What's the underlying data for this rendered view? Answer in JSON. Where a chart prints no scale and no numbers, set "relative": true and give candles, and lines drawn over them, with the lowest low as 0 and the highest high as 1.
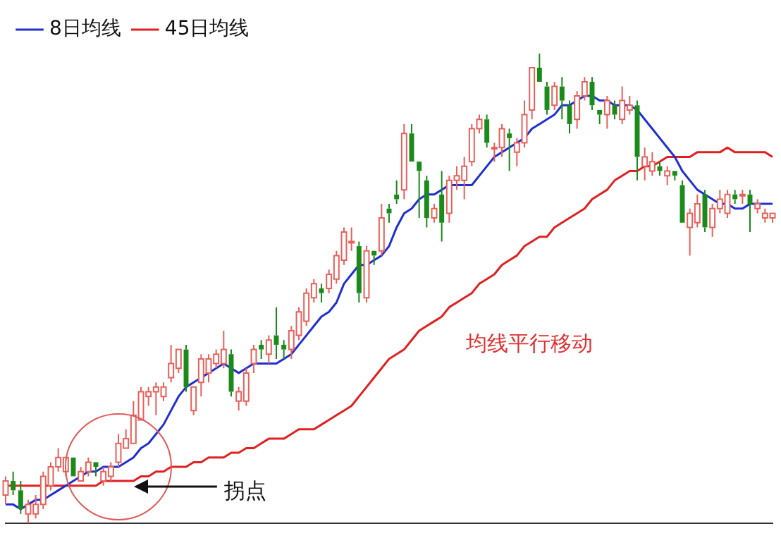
{
  "chart_data": {
    "type": "candlestick",
    "relative": true,
    "legend": "top left",
    "categories": [
      null,
      null,
      null,
      null,
      null,
      null,
      null,
      null,
      null,
      null,
      null,
      null,
      null,
      null,
      null,
      null,
      null,
      null,
      null,
      null,
      null,
      null,
      null,
      null,
      null,
      null,
      null,
      null,
      null,
      null,
      null,
      null,
      null,
      null,
      null,
      null,
      null,
      null,
      null,
      null,
      null,
      null,
      null,
      null,
      null,
      null,
      null,
      null,
      null,
      null,
      null,
      null,
      null,
      null,
      null,
      null,
      null,
      null,
      null,
      null,
      null,
      null,
      null,
      null,
      null,
      null,
      null,
      null,
      null,
      null,
      null,
      null,
      null,
      null,
      null,
      null,
      null,
      null,
      null,
      null,
      null,
      null,
      null,
      null,
      null,
      null,
      null,
      null,
      null,
      null,
      null,
      null,
      null,
      null,
      null,
      null,
      null,
      null,
      null,
      null,
      null,
      null,
      null
    ],
    "ohlc": [
      [
        0.06,
        0.1,
        0.04,
        0.09
      ],
      [
        0.09,
        0.11,
        0.06,
        0.07
      ],
      [
        0.07,
        0.09,
        0.02,
        0.03
      ],
      [
        0.02,
        0.05,
        0,
        0.04
      ],
      [
        0.02,
        0.06,
        0.01,
        0.04
      ],
      [
        0.04,
        0.11,
        0.03,
        0.1
      ],
      [
        0.08,
        0.13,
        0.07,
        0.12
      ],
      [
        0.12,
        0.16,
        0.11,
        0.14
      ],
      [
        0.11,
        0.14,
        0.1,
        0.14
      ],
      [
        0.14,
        0.14,
        0.1,
        0.1
      ],
      [
        0.09,
        0.12,
        0.09,
        0.11
      ],
      [
        0.11,
        0.14,
        0.1,
        0.13
      ],
      [
        0.13,
        0.13,
        0.1,
        0.12
      ],
      [
        0.09,
        0.12,
        0.08,
        0.11
      ],
      [
        0.1,
        0.13,
        0.09,
        0.12
      ],
      [
        0.13,
        0.19,
        0.12,
        0.17
      ],
      [
        0.16,
        0.2,
        0.16,
        0.18
      ],
      [
        0.17,
        0.26,
        0.17,
        0.23
      ],
      [
        0.22,
        0.29,
        0.22,
        0.28
      ],
      [
        0.27,
        0.29,
        0.25,
        0.28
      ],
      [
        0.28,
        0.3,
        0.23,
        0.29
      ],
      [
        0.27,
        0.3,
        0.26,
        0.29
      ],
      [
        0.31,
        0.38,
        0.3,
        0.34
      ],
      [
        0.33,
        0.37,
        0.32,
        0.37
      ],
      [
        0.37,
        0.38,
        0.28,
        0.29
      ],
      [
        0.24,
        0.29,
        0.23,
        0.29
      ],
      [
        0.3,
        0.36,
        0.27,
        0.35
      ],
      [
        0.32,
        0.36,
        0.3,
        0.35
      ],
      [
        0.34,
        0.37,
        0.33,
        0.36
      ],
      [
        0.34,
        0.41,
        0.33,
        0.37
      ],
      [
        0.36,
        0.37,
        0.27,
        0.28
      ],
      [
        0.26,
        0.29,
        0.24,
        0.28
      ],
      [
        0.26,
        0.33,
        0.25,
        0.32
      ],
      [
        0.34,
        0.38,
        0.32,
        0.37
      ],
      [
        0.38,
        0.39,
        0.35,
        0.37
      ],
      [
        0.36,
        0.4,
        0.34,
        0.39
      ],
      [
        0.4,
        0.46,
        0.35,
        0.38
      ],
      [
        0.38,
        0.39,
        0.35,
        0.37
      ],
      [
        0.37,
        0.42,
        0.35,
        0.41
      ],
      [
        0.4,
        0.46,
        0.39,
        0.45
      ],
      [
        0.43,
        0.5,
        0.42,
        0.49
      ],
      [
        0.48,
        0.52,
        0.47,
        0.51
      ],
      [
        0.5,
        0.51,
        0.47,
        0.49
      ],
      [
        0.5,
        0.54,
        0.49,
        0.53
      ],
      [
        0.52,
        0.58,
        0.51,
        0.57
      ],
      [
        0.56,
        0.63,
        0.55,
        0.62
      ],
      [
        0.6,
        0.63,
        0.58,
        0.6
      ],
      [
        0.59,
        0.6,
        0.47,
        0.49
      ],
      [
        0.48,
        0.59,
        0.47,
        0.58
      ],
      [
        0.58,
        0.58,
        0.55,
        0.57
      ],
      [
        0.58,
        0.68,
        0.57,
        0.65
      ],
      [
        0.67,
        0.68,
        0.64,
        0.66
      ],
      [
        0.7,
        0.73,
        0.68,
        0.69
      ],
      [
        0.71,
        0.85,
        0.69,
        0.83
      ],
      [
        0.83,
        0.85,
        0.77,
        0.77
      ],
      [
        0.77,
        0.77,
        0.65,
        0.75
      ],
      [
        0.73,
        0.74,
        0.63,
        0.65
      ],
      [
        0.65,
        0.68,
        0.64,
        0.67
      ],
      [
        0.7,
        0.75,
        0.6,
        0.64
      ],
      [
        0.66,
        0.74,
        0.64,
        0.73
      ],
      [
        0.73,
        0.76,
        0.71,
        0.74
      ],
      [
        0.73,
        0.78,
        0.69,
        0.76
      ],
      [
        0.77,
        0.85,
        0.76,
        0.84
      ],
      [
        0.84,
        0.87,
        0.83,
        0.86
      ],
      [
        0.86,
        0.87,
        0.8,
        0.81
      ],
      [
        0.8,
        0.81,
        0.77,
        0.8
      ],
      [
        0.8,
        0.85,
        0.78,
        0.84
      ],
      [
        0.83,
        0.84,
        0.75,
        0.82
      ],
      [
        0.79,
        0.82,
        0.76,
        0.81
      ],
      [
        0.81,
        0.9,
        0.8,
        0.87
      ],
      [
        0.88,
        0.97,
        0.86,
        0.97
      ],
      [
        0.97,
        1,
        0.94,
        0.94
      ],
      [
        0.93,
        0.94,
        0.87,
        0.88
      ],
      [
        0.89,
        0.94,
        0.88,
        0.93
      ],
      [
        0.93,
        0.95,
        0.86,
        0.9
      ],
      [
        0.89,
        0.9,
        0.83,
        0.85
      ],
      [
        0.86,
        0.92,
        0.84,
        0.91
      ],
      [
        0.91,
        0.95,
        0.9,
        0.94
      ],
      [
        0.94,
        0.95,
        0.88,
        0.89
      ],
      [
        0.88,
        0.88,
        0.85,
        0.87
      ],
      [
        0.87,
        0.91,
        0.84,
        0.9
      ],
      [
        0.89,
        0.9,
        0.86,
        0.87
      ],
      [
        0.86,
        0.93,
        0.85,
        0.9
      ],
      [
        0.88,
        0.91,
        0.87,
        0.89
      ],
      [
        0.89,
        0.9,
        0.73,
        0.78
      ],
      [
        0.76,
        0.8,
        0.73,
        0.78
      ],
      [
        0.75,
        0.79,
        0.74,
        0.77
      ],
      [
        0.76,
        0.77,
        0.74,
        0.75
      ],
      [
        0.74,
        0.76,
        0.72,
        0.75
      ],
      [
        0.75,
        0.75,
        0.73,
        0.74
      ],
      [
        0.72,
        0.73,
        0.64,
        0.64
      ],
      [
        0.63,
        0.67,
        0.57,
        0.66
      ],
      [
        0.64,
        0.7,
        0.63,
        0.68
      ],
      [
        0.7,
        0.71,
        0.62,
        0.63
      ],
      [
        0.63,
        0.68,
        0.61,
        0.67
      ],
      [
        0.67,
        0.71,
        0.66,
        0.69
      ],
      [
        0.66,
        0.71,
        0.65,
        0.7
      ],
      [
        0.7,
        0.71,
        0.68,
        0.69
      ],
      [
        0.7,
        0.71,
        0.68,
        0.7
      ],
      [
        0.7,
        0.71,
        0.62,
        0.68
      ],
      [
        0.67,
        0.69,
        0.66,
        0.68
      ],
      [
        0.65,
        0.67,
        0.64,
        0.66
      ],
      [
        0.65,
        0.66,
        0.64,
        0.66
      ]
    ],
    "series": [
      {
        "name": "8日均线",
        "type": "line",
        "color": "#1f2fd0",
        "values": [
          0.04,
          0.04,
          0.03,
          0.04,
          0.05,
          0.05,
          0.06,
          0.07,
          0.08,
          0.09,
          0.1,
          0.11,
          0.11,
          0.12,
          0.12,
          0.12,
          0.13,
          0.14,
          0.16,
          0.17,
          0.19,
          0.21,
          0.24,
          0.27,
          0.29,
          0.3,
          0.31,
          0.32,
          0.33,
          0.34,
          0.33,
          0.32,
          0.33,
          0.34,
          0.34,
          0.34,
          0.34,
          0.35,
          0.36,
          0.38,
          0.4,
          0.42,
          0.44,
          0.45,
          0.47,
          0.51,
          0.53,
          0.55,
          0.55,
          0.56,
          0.57,
          0.59,
          0.63,
          0.66,
          0.67,
          0.69,
          0.7,
          0.7,
          0.71,
          0.72,
          0.72,
          0.72,
          0.72,
          0.74,
          0.76,
          0.78,
          0.79,
          0.8,
          0.81,
          0.82,
          0.84,
          0.85,
          0.86,
          0.87,
          0.89,
          0.89,
          0.9,
          0.91,
          0.91,
          0.9,
          0.9,
          0.89,
          0.89,
          0.89,
          0.88,
          0.86,
          0.84,
          0.82,
          0.8,
          0.78,
          0.75,
          0.73,
          0.71,
          0.7,
          0.69,
          0.68,
          0.68,
          0.67,
          0.67,
          0.68,
          0.68,
          0.68,
          0.68
        ]
      },
      {
        "name": "45日均线",
        "type": "line",
        "color": "#e02020",
        "values": [
          0.08,
          0.08,
          0.08,
          0.08,
          0.08,
          0.08,
          0.08,
          0.08,
          0.08,
          0.08,
          0.08,
          0.08,
          0.08,
          0.09,
          0.09,
          0.09,
          0.09,
          0.09,
          0.1,
          0.1,
          0.11,
          0.11,
          0.12,
          0.12,
          0.12,
          0.13,
          0.13,
          0.14,
          0.14,
          0.14,
          0.15,
          0.15,
          0.16,
          0.16,
          0.17,
          0.18,
          0.18,
          0.18,
          0.19,
          0.2,
          0.2,
          0.2,
          0.21,
          0.22,
          0.23,
          0.24,
          0.25,
          0.27,
          0.29,
          0.31,
          0.33,
          0.35,
          0.36,
          0.37,
          0.39,
          0.41,
          0.42,
          0.43,
          0.44,
          0.46,
          0.47,
          0.48,
          0.49,
          0.51,
          0.52,
          0.53,
          0.55,
          0.56,
          0.57,
          0.59,
          0.6,
          0.61,
          0.61,
          0.63,
          0.64,
          0.65,
          0.66,
          0.67,
          0.69,
          0.7,
          0.71,
          0.73,
          0.74,
          0.75,
          0.75,
          0.76,
          0.76,
          0.77,
          0.78,
          0.78,
          0.78,
          0.78,
          0.79,
          0.79,
          0.79,
          0.79,
          0.8,
          0.79,
          0.79,
          0.79,
          0.79,
          0.79,
          0.78
        ]
      }
    ],
    "annotations": [
      "拐点",
      "均线平行移动"
    ]
  }
}
